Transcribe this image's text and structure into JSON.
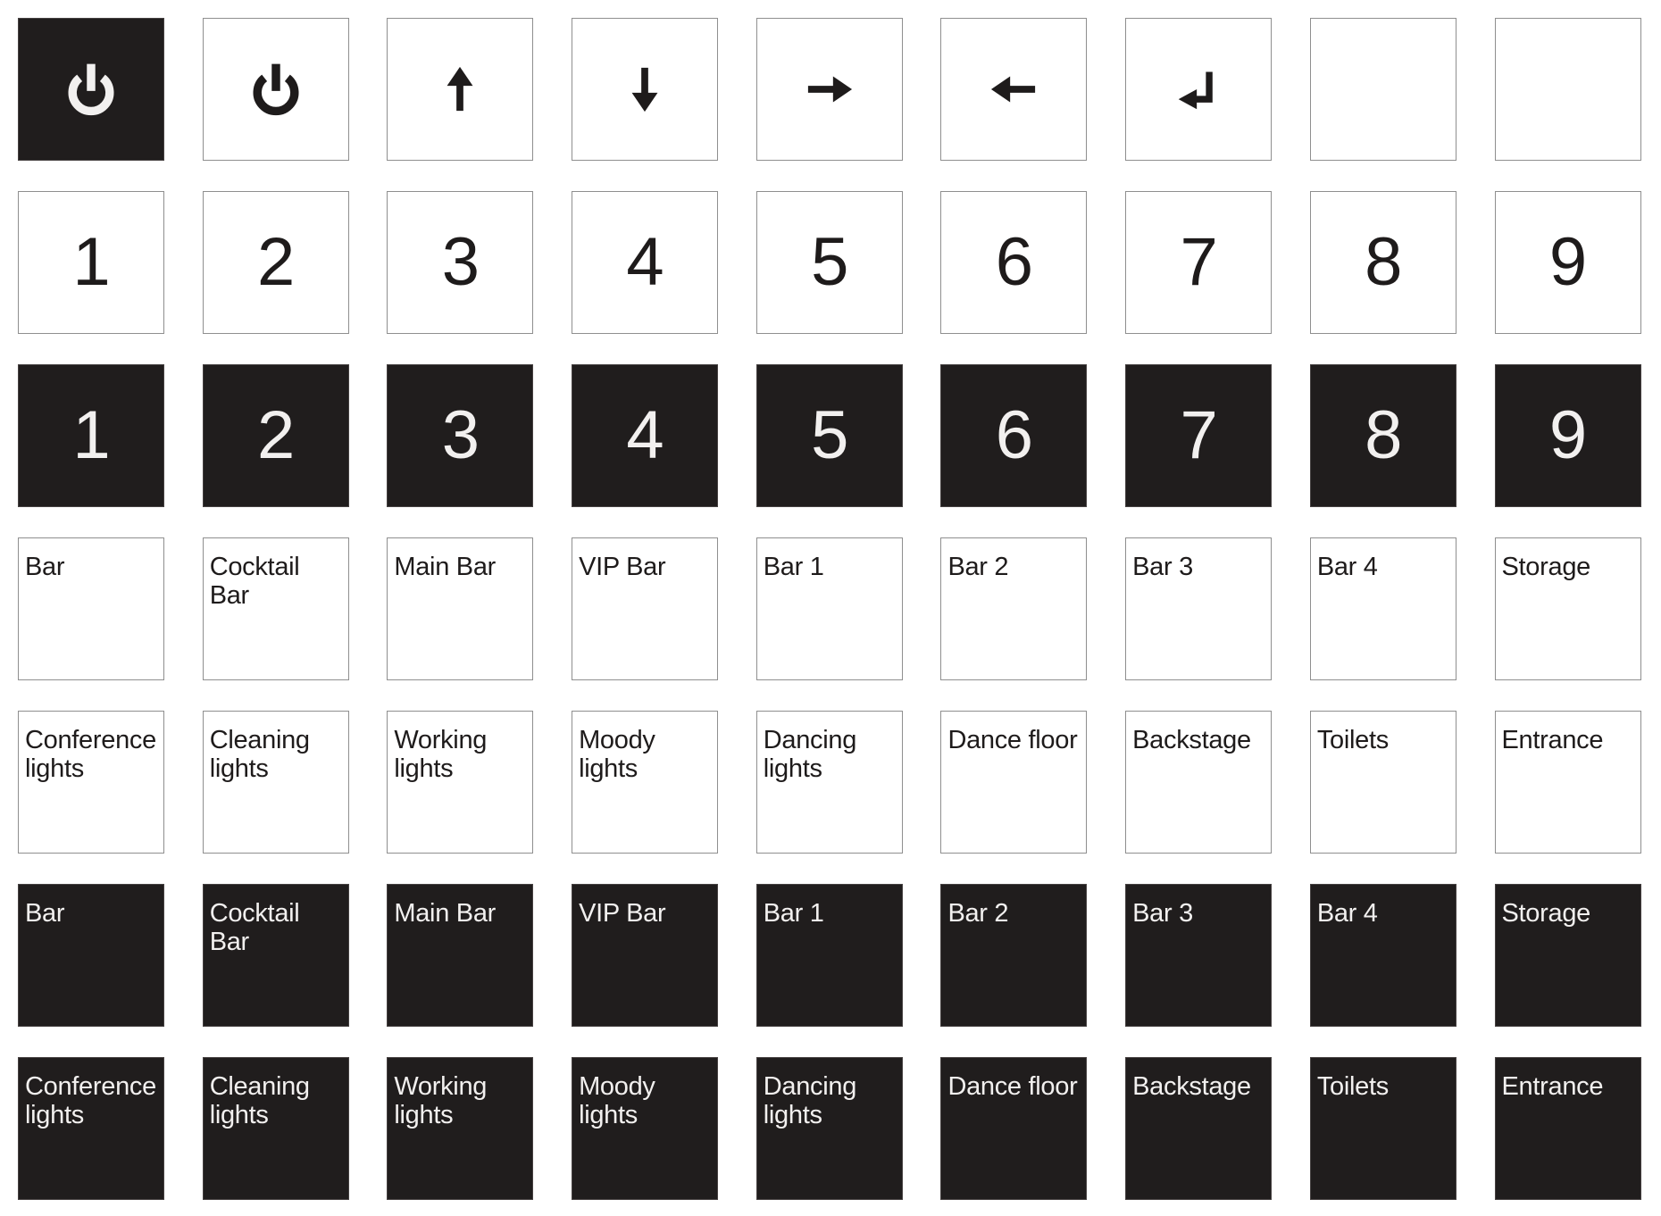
{
  "colors": {
    "button_dark": "#201d1d",
    "button_light": "#ffffff",
    "border_light": "#8f8f8f",
    "border_dark": "#464141",
    "text_on_light": "#1e1b1b",
    "text_on_dark": "#f2f0ef"
  },
  "grid": {
    "rows": [
      {
        "kind": "icon-row",
        "buttons": [
          {
            "type": "icon",
            "icon": "power",
            "variant": "dark"
          },
          {
            "type": "icon",
            "icon": "power",
            "variant": "light"
          },
          {
            "type": "icon",
            "icon": "arrow-up",
            "variant": "light"
          },
          {
            "type": "icon",
            "icon": "arrow-down",
            "variant": "light"
          },
          {
            "type": "icon",
            "icon": "arrow-right",
            "variant": "light"
          },
          {
            "type": "icon",
            "icon": "arrow-left",
            "variant": "light"
          },
          {
            "type": "icon",
            "icon": "enter",
            "variant": "light"
          },
          {
            "type": "blank",
            "variant": "light"
          },
          {
            "type": "blank",
            "variant": "light"
          }
        ]
      },
      {
        "kind": "number-row-light",
        "buttons": [
          {
            "type": "number",
            "label": "1",
            "variant": "light"
          },
          {
            "type": "number",
            "label": "2",
            "variant": "light"
          },
          {
            "type": "number",
            "label": "3",
            "variant": "light"
          },
          {
            "type": "number",
            "label": "4",
            "variant": "light"
          },
          {
            "type": "number",
            "label": "5",
            "variant": "light"
          },
          {
            "type": "number",
            "label": "6",
            "variant": "light"
          },
          {
            "type": "number",
            "label": "7",
            "variant": "light"
          },
          {
            "type": "number",
            "label": "8",
            "variant": "light"
          },
          {
            "type": "number",
            "label": "9",
            "variant": "light"
          }
        ]
      },
      {
        "kind": "number-row-dark",
        "buttons": [
          {
            "type": "number",
            "label": "1",
            "variant": "dark"
          },
          {
            "type": "number",
            "label": "2",
            "variant": "dark"
          },
          {
            "type": "number",
            "label": "3",
            "variant": "dark"
          },
          {
            "type": "number",
            "label": "4",
            "variant": "dark"
          },
          {
            "type": "number",
            "label": "5",
            "variant": "dark"
          },
          {
            "type": "number",
            "label": "6",
            "variant": "dark"
          },
          {
            "type": "number",
            "label": "7",
            "variant": "dark"
          },
          {
            "type": "number",
            "label": "8",
            "variant": "dark"
          },
          {
            "type": "number",
            "label": "9",
            "variant": "dark"
          }
        ]
      },
      {
        "kind": "bar-row-light",
        "buttons": [
          {
            "type": "label",
            "label": "Bar",
            "variant": "light"
          },
          {
            "type": "label",
            "label": "Cocktail Bar",
            "variant": "light"
          },
          {
            "type": "label",
            "label": "Main Bar",
            "variant": "light"
          },
          {
            "type": "label",
            "label": "VIP Bar",
            "variant": "light"
          },
          {
            "type": "label",
            "label": "Bar 1",
            "variant": "light"
          },
          {
            "type": "label",
            "label": "Bar 2",
            "variant": "light"
          },
          {
            "type": "label",
            "label": "Bar 3",
            "variant": "light"
          },
          {
            "type": "label",
            "label": "Bar 4",
            "variant": "light"
          },
          {
            "type": "label",
            "label": "Storage",
            "variant": "light"
          }
        ]
      },
      {
        "kind": "lights-row-light",
        "buttons": [
          {
            "type": "label",
            "label": "Conference lights",
            "variant": "light"
          },
          {
            "type": "label",
            "label": "Cleaning lights",
            "variant": "light"
          },
          {
            "type": "label",
            "label": "Working lights",
            "variant": "light"
          },
          {
            "type": "label",
            "label": "Moody lights",
            "variant": "light"
          },
          {
            "type": "label",
            "label": "Dancing lights",
            "variant": "light"
          },
          {
            "type": "label",
            "label": "Dance floor",
            "variant": "light"
          },
          {
            "type": "label",
            "label": "Backstage",
            "variant": "light"
          },
          {
            "type": "label",
            "label": "Toilets",
            "variant": "light"
          },
          {
            "type": "label",
            "label": "Entrance",
            "variant": "light"
          }
        ]
      },
      {
        "kind": "bar-row-dark",
        "buttons": [
          {
            "type": "label",
            "label": "Bar",
            "variant": "dark"
          },
          {
            "type": "label",
            "label": "Cocktail Bar",
            "variant": "dark"
          },
          {
            "type": "label",
            "label": "Main Bar",
            "variant": "dark"
          },
          {
            "type": "label",
            "label": "VIP Bar",
            "variant": "dark"
          },
          {
            "type": "label",
            "label": "Bar 1",
            "variant": "dark"
          },
          {
            "type": "label",
            "label": "Bar 2",
            "variant": "dark"
          },
          {
            "type": "label",
            "label": "Bar 3",
            "variant": "dark"
          },
          {
            "type": "label",
            "label": "Bar 4",
            "variant": "dark"
          },
          {
            "type": "label",
            "label": "Storage",
            "variant": "dark"
          }
        ]
      },
      {
        "kind": "lights-row-dark",
        "buttons": [
          {
            "type": "label",
            "label": "Conference lights",
            "variant": "dark"
          },
          {
            "type": "label",
            "label": "Cleaning lights",
            "variant": "dark"
          },
          {
            "type": "label",
            "label": "Working lights",
            "variant": "dark"
          },
          {
            "type": "label",
            "label": "Moody lights",
            "variant": "dark"
          },
          {
            "type": "label",
            "label": "Dancing lights",
            "variant": "dark"
          },
          {
            "type": "label",
            "label": "Dance floor",
            "variant": "dark"
          },
          {
            "type": "label",
            "label": "Backstage",
            "variant": "dark"
          },
          {
            "type": "label",
            "label": "Toilets",
            "variant": "dark"
          },
          {
            "type": "label",
            "label": "Entrance",
            "variant": "dark"
          }
        ]
      }
    ]
  }
}
